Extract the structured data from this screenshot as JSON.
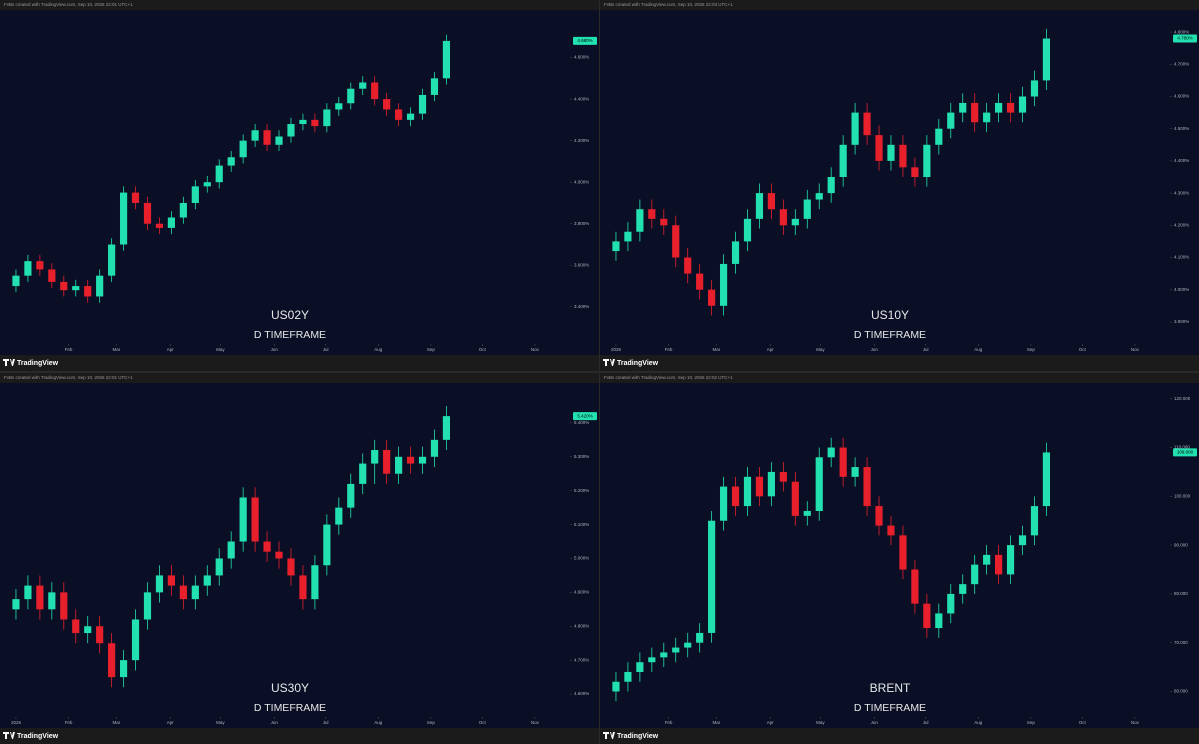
{
  "chart_data": [
    {
      "type": "candlestick",
      "header": "FxBs created with TradingView.com, Sep 10, 2026 22:01 UTC+1",
      "watermark": "US02Y",
      "subtitle": "D TIMEFRAME",
      "footer": "TradingView",
      "last_label": "4.680%",
      "up_color": "#22e0b0",
      "down_color": "#e8202c",
      "open": [
        3.5,
        3.55,
        3.62,
        3.58,
        3.52,
        3.48,
        3.5,
        3.45,
        3.55,
        3.7,
        3.95,
        3.9,
        3.8,
        3.78,
        3.83,
        3.9,
        3.98,
        4.0,
        4.08,
        4.12,
        4.2,
        4.25,
        4.18,
        4.22,
        4.28,
        4.3,
        4.27,
        4.35,
        4.38,
        4.45,
        4.48,
        4.4,
        4.35,
        4.3,
        4.33,
        4.42,
        4.5
      ],
      "high": [
        3.58,
        3.65,
        3.65,
        3.61,
        3.55,
        3.53,
        3.53,
        3.58,
        3.73,
        3.98,
        3.98,
        3.93,
        3.83,
        3.86,
        3.93,
        4.01,
        4.03,
        4.11,
        4.15,
        4.23,
        4.28,
        4.28,
        4.25,
        4.31,
        4.33,
        4.33,
        4.38,
        4.41,
        4.48,
        4.51,
        4.51,
        4.43,
        4.38,
        4.36,
        4.45,
        4.53,
        4.71
      ],
      "low": [
        3.47,
        3.52,
        3.55,
        3.49,
        3.45,
        3.45,
        3.42,
        3.42,
        3.52,
        3.67,
        3.87,
        3.77,
        3.75,
        3.75,
        3.8,
        3.87,
        3.95,
        3.97,
        4.05,
        4.09,
        4.17,
        4.15,
        4.15,
        4.19,
        4.25,
        4.24,
        4.24,
        4.32,
        4.35,
        4.42,
        4.37,
        4.32,
        4.27,
        4.27,
        4.3,
        4.39,
        4.47
      ],
      "close": [
        3.55,
        3.62,
        3.58,
        3.52,
        3.48,
        3.5,
        3.45,
        3.55,
        3.7,
        3.95,
        3.9,
        3.8,
        3.78,
        3.83,
        3.9,
        3.98,
        4.0,
        4.08,
        4.12,
        4.2,
        4.25,
        4.18,
        4.22,
        4.28,
        4.3,
        4.27,
        4.35,
        4.38,
        4.45,
        4.48,
        4.4,
        4.35,
        4.3,
        4.33,
        4.42,
        4.5,
        4.68
      ],
      "xlim": [
        -1,
        46
      ],
      "xticks": [
        {
          "value": 4.4,
          "label": "Feb"
        },
        {
          "value": 8.4,
          "label": "Mar"
        },
        {
          "value": 12.9,
          "label": "Apr"
        },
        {
          "value": 17.1,
          "label": "May"
        },
        {
          "value": 21.6,
          "label": "Jun"
        },
        {
          "value": 25.9,
          "label": "Jul"
        },
        {
          "value": 30.3,
          "label": "Aug"
        },
        {
          "value": 34.7,
          "label": "Sep"
        },
        {
          "value": 39,
          "label": "Oct"
        },
        {
          "value": 43.4,
          "label": "Nov"
        }
      ],
      "ylim": [
        3.25,
        4.8
      ],
      "yticks": [
        {
          "value": 3.4,
          "label": "3.400%"
        },
        {
          "value": 3.6,
          "label": "3.600%"
        },
        {
          "value": 3.8,
          "label": "3.800%"
        },
        {
          "value": 4.0,
          "label": "4.000%"
        },
        {
          "value": 4.2,
          "label": "4.200%"
        },
        {
          "value": 4.4,
          "label": "4.400%"
        },
        {
          "value": 4.6,
          "label": "4.600%"
        }
      ]
    },
    {
      "type": "candlestick",
      "header": "FxBs created with TradingView.com, Sep 10, 2026 22:03 UTC+1",
      "watermark": "US10Y",
      "subtitle": "D TIMEFRAME",
      "footer": "TradingView",
      "last_label": "4.780%",
      "up_color": "#22e0b0",
      "down_color": "#e8202c",
      "open": [
        4.12,
        4.15,
        4.18,
        4.25,
        4.22,
        4.2,
        4.1,
        4.05,
        4.0,
        3.95,
        4.08,
        4.15,
        4.22,
        4.3,
        4.25,
        4.2,
        4.22,
        4.28,
        4.3,
        4.35,
        4.45,
        4.55,
        4.48,
        4.4,
        4.45,
        4.38,
        4.35,
        4.45,
        4.5,
        4.55,
        4.58,
        4.52,
        4.55,
        4.58,
        4.55,
        4.6,
        4.65
      ],
      "high": [
        4.18,
        4.21,
        4.28,
        4.28,
        4.25,
        4.23,
        4.13,
        4.08,
        4.03,
        4.11,
        4.18,
        4.25,
        4.33,
        4.33,
        4.28,
        4.25,
        4.31,
        4.33,
        4.38,
        4.48,
        4.58,
        4.58,
        4.51,
        4.48,
        4.48,
        4.41,
        4.48,
        4.53,
        4.58,
        4.61,
        4.61,
        4.58,
        4.61,
        4.61,
        4.63,
        4.68,
        4.81
      ],
      "low": [
        4.09,
        4.12,
        4.15,
        4.19,
        4.17,
        4.07,
        4.02,
        3.97,
        3.92,
        3.92,
        4.05,
        4.12,
        4.19,
        4.22,
        4.17,
        4.17,
        4.19,
        4.25,
        4.27,
        4.32,
        4.42,
        4.45,
        4.37,
        4.37,
        4.35,
        4.32,
        4.32,
        4.42,
        4.47,
        4.52,
        4.49,
        4.49,
        4.52,
        4.52,
        4.52,
        4.57,
        4.62
      ],
      "close": [
        4.15,
        4.18,
        4.25,
        4.22,
        4.2,
        4.1,
        4.05,
        4.0,
        3.95,
        4.08,
        4.15,
        4.22,
        4.3,
        4.25,
        4.2,
        4.22,
        4.28,
        4.3,
        4.35,
        4.45,
        4.55,
        4.48,
        4.4,
        4.45,
        4.38,
        4.35,
        4.45,
        4.5,
        4.55,
        4.58,
        4.52,
        4.55,
        4.58,
        4.55,
        4.6,
        4.65,
        4.78
      ],
      "xlim": [
        -1,
        46
      ],
      "xticks": [
        {
          "value": 0,
          "label": "2026"
        },
        {
          "value": 4.4,
          "label": "Feb"
        },
        {
          "value": 8.4,
          "label": "Mar"
        },
        {
          "value": 12.9,
          "label": "Apr"
        },
        {
          "value": 17.1,
          "label": "May"
        },
        {
          "value": 21.6,
          "label": "Jun"
        },
        {
          "value": 25.9,
          "label": "Jul"
        },
        {
          "value": 30.3,
          "label": "Aug"
        },
        {
          "value": 34.7,
          "label": "Sep"
        },
        {
          "value": 39,
          "label": "Oct"
        },
        {
          "value": 43.4,
          "label": "Nov"
        }
      ],
      "ylim": [
        3.85,
        4.85
      ],
      "yticks": [
        {
          "value": 3.9,
          "label": "3.900%"
        },
        {
          "value": 4.0,
          "label": "4.000%"
        },
        {
          "value": 4.1,
          "label": "4.100%"
        },
        {
          "value": 4.2,
          "label": "4.200%"
        },
        {
          "value": 4.3,
          "label": "4.300%"
        },
        {
          "value": 4.4,
          "label": "4.400%"
        },
        {
          "value": 4.5,
          "label": "4.500%"
        },
        {
          "value": 4.6,
          "label": "4.600%"
        },
        {
          "value": 4.7,
          "label": "4.700%"
        },
        {
          "value": 4.8,
          "label": "4.800%"
        }
      ]
    },
    {
      "type": "candlestick",
      "header": "FxBs created with TradingView.com, Sep 10, 2026 22:01 UTC+1",
      "watermark": "US30Y",
      "subtitle": "D TIMEFRAME",
      "footer": "TradingView",
      "last_label": "5.420%",
      "up_color": "#22e0b0",
      "down_color": "#e8202c",
      "open": [
        4.85,
        4.88,
        4.92,
        4.85,
        4.9,
        4.82,
        4.78,
        4.8,
        4.75,
        4.65,
        4.7,
        4.82,
        4.9,
        4.95,
        4.92,
        4.88,
        4.92,
        4.95,
        5.0,
        5.05,
        5.18,
        5.05,
        5.02,
        5.0,
        4.95,
        4.88,
        4.98,
        5.1,
        5.15,
        5.22,
        5.28,
        5.32,
        5.25,
        5.3,
        5.28,
        5.3,
        5.35
      ],
      "high": [
        4.91,
        4.95,
        4.95,
        4.93,
        4.93,
        4.85,
        4.83,
        4.83,
        4.78,
        4.73,
        4.85,
        4.93,
        4.98,
        4.98,
        4.95,
        4.95,
        4.98,
        5.03,
        5.08,
        5.21,
        5.21,
        5.08,
        5.05,
        5.03,
        4.98,
        5.01,
        5.13,
        5.18,
        5.25,
        5.31,
        5.35,
        5.35,
        5.33,
        5.33,
        5.33,
        5.38,
        5.45
      ],
      "low": [
        4.82,
        4.85,
        4.82,
        4.82,
        4.79,
        4.75,
        4.75,
        4.72,
        4.62,
        4.62,
        4.67,
        4.79,
        4.87,
        4.89,
        4.85,
        4.85,
        4.89,
        4.92,
        4.97,
        5.02,
        5.02,
        4.99,
        4.97,
        4.92,
        4.85,
        4.85,
        4.95,
        5.07,
        5.12,
        5.19,
        5.22,
        5.22,
        5.22,
        5.25,
        5.25,
        5.27,
        5.32
      ],
      "close": [
        4.88,
        4.92,
        4.85,
        4.9,
        4.82,
        4.78,
        4.8,
        4.75,
        4.65,
        4.7,
        4.82,
        4.9,
        4.95,
        4.92,
        4.88,
        4.92,
        4.95,
        5.0,
        5.05,
        5.18,
        5.05,
        5.02,
        5.0,
        4.95,
        4.88,
        4.98,
        5.1,
        5.15,
        5.22,
        5.28,
        5.32,
        5.25,
        5.3,
        5.28,
        5.3,
        5.35,
        5.42
      ],
      "xlim": [
        -1,
        46
      ],
      "xticks": [
        {
          "value": 0,
          "label": "2026"
        },
        {
          "value": 4.4,
          "label": "Feb"
        },
        {
          "value": 8.4,
          "label": "Mar"
        },
        {
          "value": 12.9,
          "label": "Apr"
        },
        {
          "value": 17.1,
          "label": "May"
        },
        {
          "value": 21.6,
          "label": "Jun"
        },
        {
          "value": 25.9,
          "label": "Jul"
        },
        {
          "value": 30.3,
          "label": "Aug"
        },
        {
          "value": 34.7,
          "label": "Sep"
        },
        {
          "value": 39,
          "label": "Oct"
        },
        {
          "value": 43.4,
          "label": "Nov"
        }
      ],
      "ylim": [
        4.55,
        5.5
      ],
      "yticks": [
        {
          "value": 4.6,
          "label": "4.600%"
        },
        {
          "value": 4.7,
          "label": "4.700%"
        },
        {
          "value": 4.8,
          "label": "4.800%"
        },
        {
          "value": 4.9,
          "label": "4.900%"
        },
        {
          "value": 5.0,
          "label": "5.000%"
        },
        {
          "value": 5.1,
          "label": "5.100%"
        },
        {
          "value": 5.2,
          "label": "5.200%"
        },
        {
          "value": 5.3,
          "label": "5.300%"
        },
        {
          "value": 5.4,
          "label": "5.400%"
        }
      ]
    },
    {
      "type": "candlestick",
      "header": "FxBs created with TradingView.com, Sep 10, 2026 22:02 UTC+1",
      "watermark": "BRENT",
      "subtitle": "D TIMEFRAME",
      "footer": "TradingView",
      "last_label": "109.000",
      "up_color": "#22e0b0",
      "down_color": "#e8202c",
      "open": [
        60,
        62,
        64,
        66,
        67,
        68,
        69,
        70,
        72,
        95,
        102,
        98,
        104,
        100,
        105,
        103,
        96,
        97,
        108,
        110,
        104,
        106,
        98,
        94,
        92,
        85,
        78,
        73,
        76,
        80,
        82,
        86,
        88,
        84,
        90,
        92,
        98
      ],
      "high": [
        64,
        66,
        68,
        69,
        70,
        71,
        72,
        74,
        97,
        104,
        104,
        106,
        106,
        107,
        107,
        105,
        99,
        110,
        112,
        112,
        108,
        108,
        100,
        96,
        94,
        87,
        80,
        78,
        82,
        84,
        88,
        90,
        90,
        92,
        94,
        100,
        111
      ],
      "low": [
        58,
        60,
        62,
        64,
        65,
        66,
        67,
        68,
        70,
        93,
        96,
        96,
        98,
        98,
        101,
        94,
        94,
        95,
        106,
        102,
        102,
        96,
        92,
        90,
        83,
        76,
        71,
        71,
        74,
        78,
        80,
        84,
        82,
        82,
        88,
        90,
        96
      ],
      "close": [
        62,
        64,
        66,
        67,
        68,
        69,
        70,
        72,
        95,
        102,
        98,
        104,
        100,
        105,
        103,
        96,
        97,
        108,
        110,
        104,
        106,
        98,
        94,
        92,
        85,
        78,
        73,
        76,
        80,
        82,
        86,
        88,
        84,
        90,
        92,
        98,
        109
      ],
      "xlim": [
        -1,
        46
      ],
      "xticks": [
        {
          "value": 4.4,
          "label": "Feb"
        },
        {
          "value": 8.4,
          "label": "Mar"
        },
        {
          "value": 12.9,
          "label": "Apr"
        },
        {
          "value": 17.1,
          "label": "May"
        },
        {
          "value": 21.6,
          "label": "Jun"
        },
        {
          "value": 25.9,
          "label": "Jul"
        },
        {
          "value": 30.3,
          "label": "Aug"
        },
        {
          "value": 34.7,
          "label": "Sep"
        },
        {
          "value": 39,
          "label": "Oct"
        },
        {
          "value": 43.4,
          "label": "Nov"
        }
      ],
      "ylim": [
        56,
        122
      ],
      "yticks": [
        {
          "value": 60,
          "label": "60.000"
        },
        {
          "value": 70,
          "label": "70.000"
        },
        {
          "value": 80,
          "label": "80.000"
        },
        {
          "value": 90,
          "label": "90.000"
        },
        {
          "value": 100,
          "label": "100.000"
        },
        {
          "value": 110,
          "label": "110.000"
        },
        {
          "value": 120,
          "label": "120.000"
        }
      ]
    }
  ]
}
